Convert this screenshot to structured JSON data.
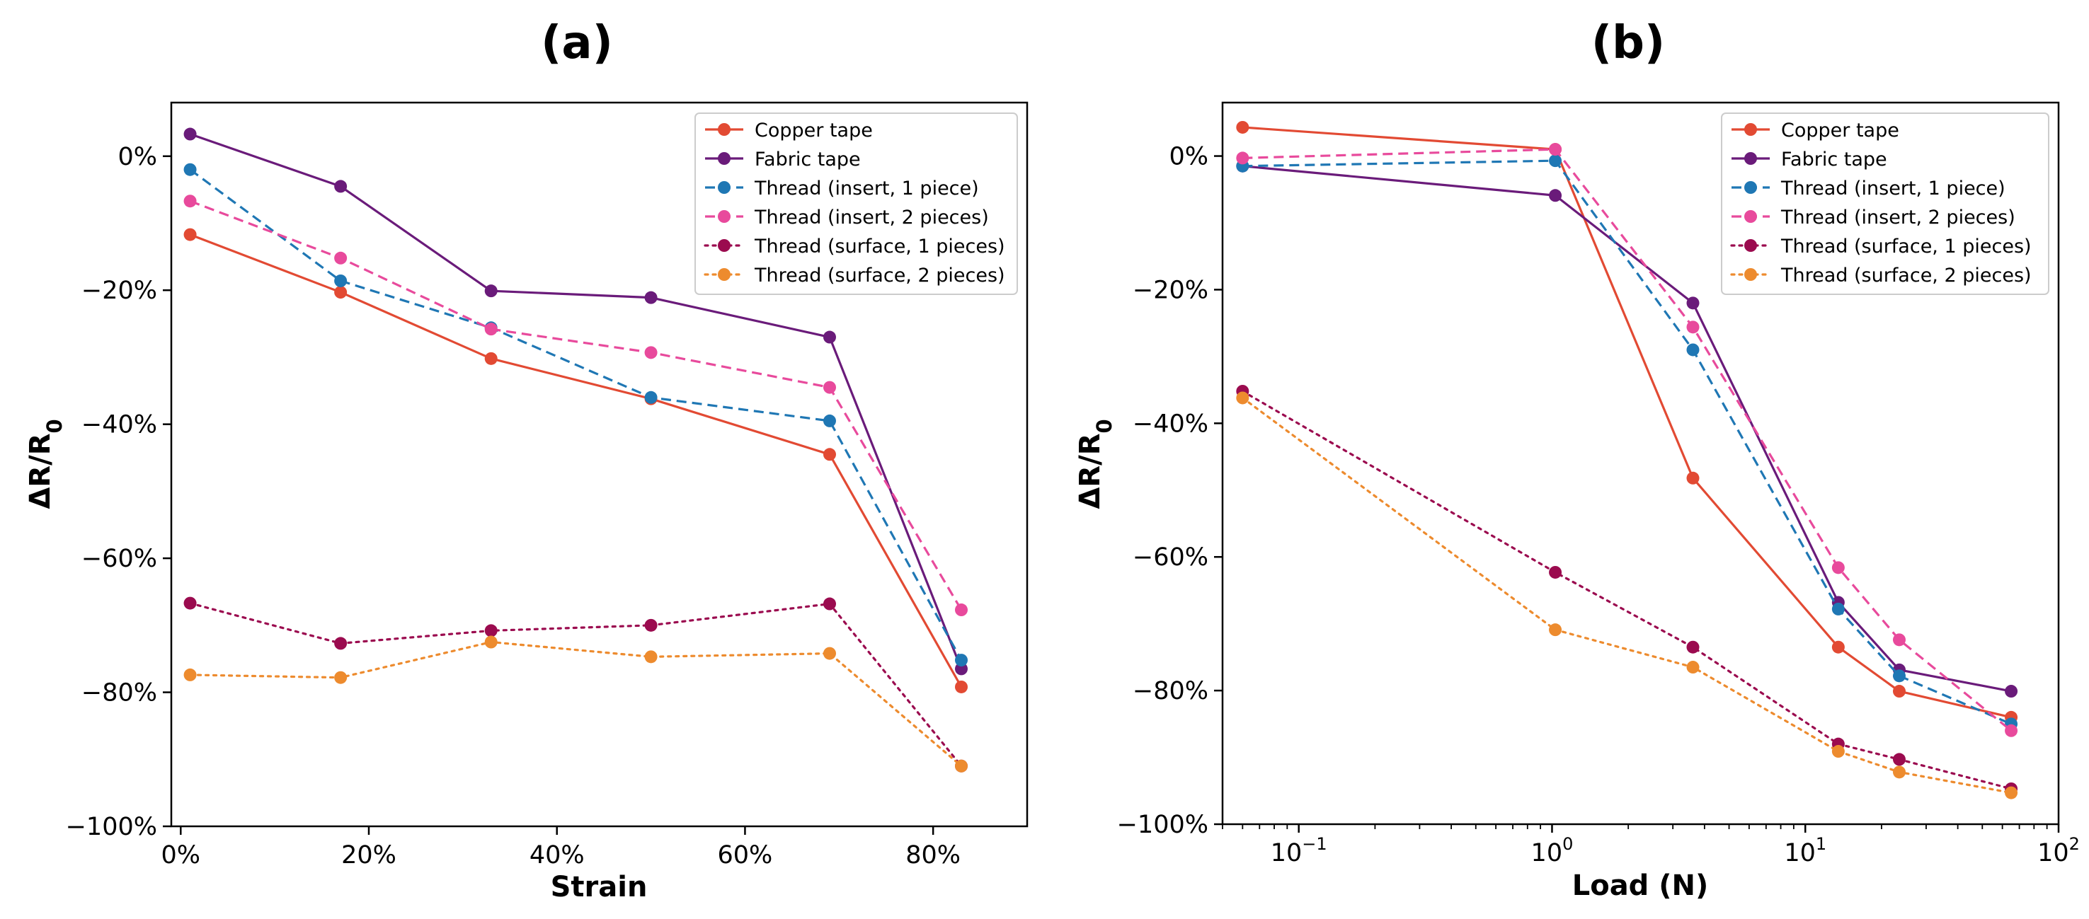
{
  "chart_data": [
    {
      "panel": "(a)",
      "type": "line",
      "xlabel": "Strain",
      "ylabel": "ΔR/R0",
      "xscale": "linear",
      "xlim": [
        -0.01,
        0.9
      ],
      "ylim": [
        -1.0,
        0.08
      ],
      "xticks": [
        0,
        0.2,
        0.4,
        0.6,
        0.8
      ],
      "xtick_labels": [
        "0%",
        "20%",
        "40%",
        "60%",
        "80%"
      ],
      "yticks": [
        0,
        -0.2,
        -0.4,
        -0.6,
        -0.8,
        -1.0
      ],
      "ytick_labels": [
        "0%",
        "−20%",
        "−40%",
        "−60%",
        "−80%",
        "−100%"
      ],
      "legend_position": "top-right",
      "x": [
        0.01,
        0.17,
        0.33,
        0.5,
        0.69,
        0.83
      ],
      "series": [
        {
          "name": "Copper tape",
          "color": "#e24a33",
          "dash": "solid",
          "values": [
            -0.117,
            -0.203,
            -0.302,
            -0.362,
            -0.445,
            -0.792
          ]
        },
        {
          "name": "Fabric tape",
          "color": "#6a1b7a",
          "dash": "solid",
          "values": [
            0.033,
            -0.045,
            -0.201,
            -0.211,
            -0.27,
            -0.765
          ]
        },
        {
          "name": "Thread (insert, 1 piece)",
          "color": "#1f77b4",
          "dash": "dashed",
          "values": [
            -0.02,
            -0.186,
            -0.256,
            -0.36,
            -0.395,
            -0.752
          ]
        },
        {
          "name": "Thread (insert, 2 pieces)",
          "color": "#e84a9c",
          "dash": "dashed",
          "values": [
            -0.067,
            -0.152,
            -0.258,
            -0.293,
            -0.345,
            -0.677
          ]
        },
        {
          "name": "Thread (surface, 1 pieces)",
          "color": "#9b0b4f",
          "dash": "dotted",
          "values": [
            -0.667,
            -0.727,
            -0.708,
            -0.7,
            -0.668,
            -0.91
          ]
        },
        {
          "name": "Thread (surface, 2 pieces)",
          "color": "#ed8b2e",
          "dash": "dotted",
          "values": [
            -0.774,
            -0.778,
            -0.725,
            -0.747,
            -0.742,
            -0.91
          ]
        }
      ]
    },
    {
      "panel": "(b)",
      "type": "line",
      "xlabel": "Load (N)",
      "ylabel": "ΔR/R0",
      "xscale": "log",
      "xlim": [
        0.05,
        100
      ],
      "ylim": [
        -1.0,
        0.08
      ],
      "xticks": [
        0.1,
        1,
        10,
        100
      ],
      "xtick_labels": [
        "10",
        "10",
        "10",
        "10"
      ],
      "xtick_exponents": [
        "−1",
        "0",
        "1",
        "2"
      ],
      "yticks": [
        0,
        -0.2,
        -0.4,
        -0.6,
        -0.8,
        -1.0
      ],
      "ytick_labels": [
        "0%",
        "−20%",
        "−40%",
        "−60%",
        "−80%",
        "−100%"
      ],
      "legend_position": "top-right",
      "x": [
        0.06,
        1.03,
        3.6,
        13.5,
        23.5,
        65
      ],
      "series": [
        {
          "name": "Copper tape",
          "color": "#e24a33",
          "dash": "solid",
          "values": [
            0.043,
            0.01,
            -0.482,
            -0.735,
            -0.801,
            -0.84
          ]
        },
        {
          "name": "Fabric tape",
          "color": "#6a1b7a",
          "dash": "solid",
          "values": [
            -0.015,
            -0.059,
            -0.22,
            -0.668,
            -0.769,
            -0.801
          ]
        },
        {
          "name": "Thread (insert, 1 piece)",
          "color": "#1f77b4",
          "dash": "dashed",
          "values": [
            -0.015,
            -0.007,
            -0.29,
            -0.678,
            -0.778,
            -0.85
          ]
        },
        {
          "name": "Thread (insert, 2 pieces)",
          "color": "#e84a9c",
          "dash": "dashed",
          "values": [
            -0.003,
            0.01,
            -0.256,
            -0.616,
            -0.724,
            -0.86
          ]
        },
        {
          "name": "Thread (surface, 1 pieces)",
          "color": "#9b0b4f",
          "dash": "dotted",
          "values": [
            -0.352,
            -0.623,
            -0.735,
            -0.88,
            -0.903,
            -0.947
          ]
        },
        {
          "name": "Thread (surface, 2 pieces)",
          "color": "#ed8b2e",
          "dash": "dotted",
          "values": [
            -0.362,
            -0.709,
            -0.765,
            -0.891,
            -0.922,
            -0.953
          ]
        }
      ]
    }
  ]
}
